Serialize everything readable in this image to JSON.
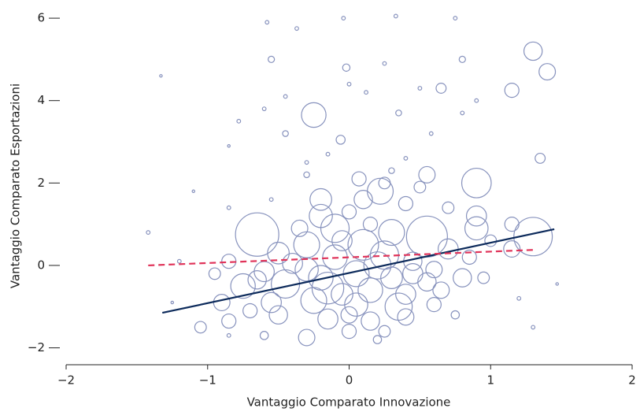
{
  "chart_data": {
    "type": "scatter",
    "xlabel": "Vantaggio Comparato Innovazione",
    "ylabel": "Vantaggio Comparato Esportazioni",
    "xlim": [
      -2,
      2
    ],
    "ylim": [
      -2.41,
      6.25
    ],
    "xticks": [
      {
        "value": -2,
        "label": "−2"
      },
      {
        "value": -1,
        "label": "−1"
      },
      0,
      1,
      2
    ],
    "yticks": [
      {
        "value": -2,
        "label": "−2"
      },
      0,
      2,
      4,
      6
    ],
    "color": "#8792bd",
    "x": [
      -0.58,
      -0.37,
      -0.04,
      0.33,
      0.75,
      -0.55,
      -0.02,
      0.25,
      0.8,
      1.3,
      1.4,
      -0.25,
      0.5,
      0.65,
      1.15,
      -0.45,
      0.12,
      -0.6,
      0.35,
      -0.45,
      -0.06,
      -0.78,
      0.58,
      1.35,
      0.8,
      -1.33,
      -0.85,
      0.0,
      0.9,
      -0.3,
      0.07,
      0.25,
      0.55,
      0.9,
      0.5,
      -0.2,
      0.1,
      0.22,
      0.4,
      0.9,
      -0.2,
      0.0,
      -0.55,
      -0.85,
      -1.1,
      1.15,
      -0.65,
      -0.1,
      0.3,
      0.55,
      0.9,
      1.3,
      -0.3,
      0.1,
      -0.5,
      0.25,
      0.7,
      1.15,
      -0.1,
      0.45,
      -0.85,
      -0.6,
      -0.3,
      0.05,
      0.3,
      0.6,
      0.8,
      -0.75,
      -0.45,
      -0.15,
      0.15,
      0.4,
      0.65,
      0.95,
      -0.9,
      -0.55,
      -0.25,
      0.05,
      0.35,
      0.6,
      -0.85,
      -0.5,
      -0.15,
      0.15,
      0.4,
      -0.3,
      0.0,
      0.2,
      -0.6,
      -1.05,
      -0.85,
      0.75,
      1.2,
      1.3,
      1.47,
      -1.42,
      -1.2,
      -1.25,
      -0.2,
      0.2,
      -0.4,
      0.55,
      -0.05,
      0.0,
      -0.7,
      0.85,
      1.0,
      -0.95,
      0.25,
      -0.35,
      0.15,
      0.7,
      0.3,
      -0.3,
      -0.15,
      0.4,
      -0.65,
      -0.05,
      0.45
    ],
    "y": [
      5.9,
      5.75,
      6.0,
      6.05,
      6.0,
      5.0,
      4.8,
      4.9,
      5.0,
      5.2,
      4.7,
      3.65,
      4.3,
      4.3,
      4.25,
      4.1,
      4.2,
      3.8,
      3.7,
      3.2,
      3.05,
      3.5,
      3.2,
      2.6,
      3.7,
      4.6,
      2.9,
      4.4,
      4.0,
      2.2,
      2.1,
      2.0,
      2.2,
      2.0,
      1.9,
      1.6,
      1.6,
      1.8,
      1.5,
      1.2,
      1.2,
      1.3,
      1.6,
      1.4,
      1.8,
      1.0,
      0.75,
      0.9,
      0.8,
      0.7,
      0.9,
      0.7,
      0.5,
      0.5,
      0.3,
      0.25,
      0.4,
      0.4,
      0.2,
      0.1,
      0.1,
      -0.15,
      -0.1,
      -0.2,
      -0.3,
      -0.1,
      -0.3,
      -0.5,
      -0.45,
      -0.55,
      -0.6,
      -0.7,
      -0.6,
      -0.3,
      -0.9,
      -0.9,
      -0.85,
      -0.95,
      -1.0,
      -0.95,
      -1.35,
      -1.2,
      -1.3,
      -1.35,
      -1.25,
      -1.75,
      -1.6,
      -1.8,
      -1.7,
      -1.5,
      -1.7,
      -1.2,
      -0.8,
      -1.5,
      -0.45,
      0.8,
      0.1,
      -0.9,
      -0.3,
      0.0,
      0.05,
      -0.4,
      0.6,
      -1.2,
      -1.1,
      0.2,
      0.6,
      -0.2,
      -1.6,
      0.9,
      1.0,
      1.4,
      2.3,
      2.5,
      2.7,
      2.6,
      -0.35,
      -0.7,
      -0.2
    ],
    "sizes": [
      0.2,
      0.2,
      0.2,
      0.2,
      0.2,
      0.6,
      0.8,
      0.2,
      0.6,
      5,
      4,
      9,
      0.2,
      1.5,
      3,
      0.2,
      0.2,
      0.2,
      0.5,
      0.5,
      1.2,
      0.2,
      0.2,
      1.5,
      0.2,
      0.1,
      0.1,
      0.2,
      0.2,
      0.5,
      3,
      2,
      4,
      13,
      2,
      7,
      5,
      10,
      3,
      6,
      8,
      3,
      0.2,
      0.2,
      0.1,
      3,
      28,
      12,
      10,
      25,
      8,
      22,
      10,
      14,
      7,
      12,
      6,
      4,
      9,
      5,
      3,
      6,
      8,
      10,
      7,
      4,
      5,
      9,
      12,
      15,
      9,
      6,
      4,
      2,
      4,
      6,
      10,
      8,
      11,
      3,
      3,
      5,
      6,
      5,
      4,
      4,
      3,
      1,
      1,
      2,
      0.2,
      1,
      0.2,
      0.2,
      0.1,
      0.2,
      0.2,
      0.1,
      9,
      11,
      6,
      5,
      6,
      4,
      3,
      3,
      2,
      2,
      2,
      4,
      3,
      2,
      0.5,
      0.2,
      0.2,
      0.2,
      5,
      7,
      6
    ],
    "fit_lines": [
      {
        "color": "#0c2a5b",
        "dash": false,
        "x": [
          -1.32,
          1.45
        ],
        "y": [
          -1.15,
          0.88
        ]
      },
      {
        "color": "#e0345a",
        "dash": true,
        "x": [
          -1.42,
          1.32
        ],
        "y": [
          0.0,
          0.38
        ]
      }
    ]
  }
}
